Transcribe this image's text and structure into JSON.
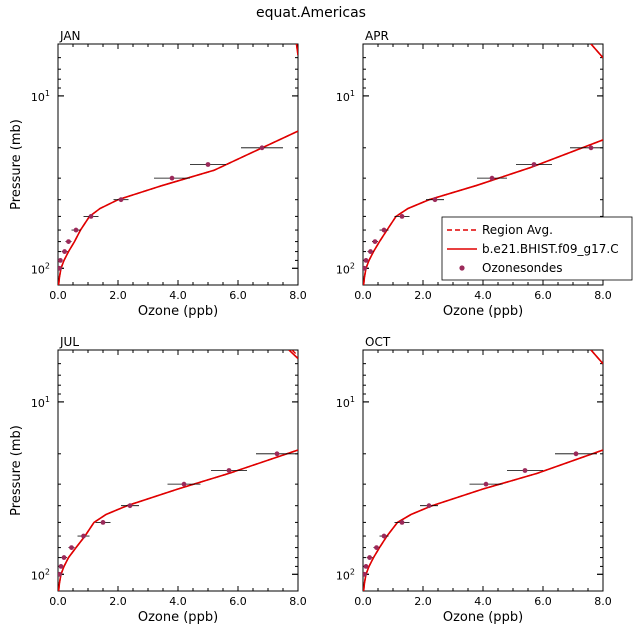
{
  "figure_title": "equat.Americas",
  "legend": {
    "items": [
      {
        "label": "Region Avg.",
        "style": "dashed",
        "color": "#e00000"
      },
      {
        "label": "b.e21.BHIST.f09_g17.C",
        "style": "solid",
        "color": "#e00000"
      },
      {
        "label": "Ozonesondes",
        "style": "marker",
        "color": "#9b2a5a"
      }
    ],
    "placement": "right, within APR panel"
  },
  "chart_data": [
    {
      "type": "line",
      "panel": "JAN",
      "xlabel": "Ozone (ppb)",
      "ylabel": "Pressure (mb)",
      "xlim": [
        0,
        8
      ],
      "ylim_log": [
        125,
        5
      ],
      "y_scale": "log-reversed",
      "x_ticks": [
        "0.0",
        "2.0",
        "4.0",
        "6.0",
        "8.0"
      ],
      "y_ticks": [
        {
          "label": "10",
          "sup": "1"
        },
        {
          "label": "10",
          "sup": "2"
        }
      ],
      "series": [
        {
          "name": "Region Avg.",
          "style": "dashed",
          "x": [
            0.02,
            0.05,
            0.1,
            0.2,
            0.35,
            0.55,
            0.75,
            1.05,
            1.4,
            2.0,
            3.5,
            5.2,
            8.0
          ],
          "y": [
            125,
            112,
            100,
            90,
            80,
            70,
            60,
            50,
            45,
            40,
            33,
            27,
            16
          ]
        },
        {
          "name": "b.e21.BHIST.f09_g17.C",
          "style": "solid",
          "x": [
            0.02,
            0.05,
            0.1,
            0.2,
            0.35,
            0.55,
            0.75,
            1.05,
            1.4,
            2.0,
            3.5,
            5.2,
            8.0
          ],
          "y": [
            125,
            112,
            100,
            90,
            80,
            70,
            60,
            50,
            45,
            40,
            33,
            27,
            16
          ]
        },
        {
          "name": "Region Avg. upper",
          "style": "dashed",
          "x": [
            7.95,
            8.0
          ],
          "y": [
            5,
            5.8
          ]
        },
        {
          "name": "b.e21.BHIST.f09_g17.C upper",
          "style": "solid",
          "x": [
            7.95,
            8.0
          ],
          "y": [
            5,
            5.8
          ]
        }
      ],
      "ozonesondes": [
        {
          "x": 0.05,
          "y": 100,
          "err": 0.05
        },
        {
          "x": 0.08,
          "y": 90,
          "err": 0.06
        },
        {
          "x": 0.22,
          "y": 80,
          "err": 0.1
        },
        {
          "x": 0.35,
          "y": 70,
          "err": 0.1
        },
        {
          "x": 0.6,
          "y": 60,
          "err": 0.15
        },
        {
          "x": 1.1,
          "y": 50,
          "err": 0.25
        },
        {
          "x": 2.1,
          "y": 40,
          "err": 0.25
        },
        {
          "x": 3.8,
          "y": 30,
          "err": 0.6
        },
        {
          "x": 5.0,
          "y": 25,
          "err": 0.6
        },
        {
          "x": 6.8,
          "y": 20,
          "err": 0.7
        }
      ]
    },
    {
      "type": "line",
      "panel": "APR",
      "xlabel": "Ozone (ppb)",
      "ylabel": "",
      "xlim": [
        0,
        8
      ],
      "ylim_log": [
        125,
        5
      ],
      "y_scale": "log-reversed",
      "x_ticks": [
        "0.0",
        "2.0",
        "4.0",
        "6.0",
        "8.0"
      ],
      "y_ticks": [
        {
          "label": "10",
          "sup": "1"
        },
        {
          "label": "10",
          "sup": "2"
        }
      ],
      "series": [
        {
          "name": "Region Avg.",
          "style": "dashed",
          "x": [
            0.02,
            0.05,
            0.1,
            0.2,
            0.35,
            0.55,
            0.8,
            1.1,
            1.5,
            2.2,
            3.8,
            5.6,
            8.0
          ],
          "y": [
            125,
            112,
            100,
            90,
            80,
            70,
            60,
            50,
            45,
            40,
            33,
            26,
            18
          ]
        },
        {
          "name": "b.e21.BHIST.f09_g17.C",
          "style": "solid",
          "x": [
            0.02,
            0.05,
            0.1,
            0.2,
            0.35,
            0.55,
            0.8,
            1.1,
            1.5,
            2.2,
            3.8,
            5.6,
            8.0
          ],
          "y": [
            125,
            112,
            100,
            90,
            80,
            70,
            60,
            50,
            45,
            40,
            33,
            26,
            18
          ]
        },
        {
          "name": "Region Avg. upper",
          "style": "dashed",
          "x": [
            7.6,
            8.0
          ],
          "y": [
            5,
            6.0
          ]
        },
        {
          "name": "b.e21.BHIST.f09_g17.C upper",
          "style": "solid",
          "x": [
            7.6,
            8.0
          ],
          "y": [
            5,
            6.0
          ]
        }
      ],
      "ozonesondes": [
        {
          "x": 0.05,
          "y": 100,
          "err": 0.05
        },
        {
          "x": 0.1,
          "y": 90,
          "err": 0.06
        },
        {
          "x": 0.25,
          "y": 80,
          "err": 0.1
        },
        {
          "x": 0.4,
          "y": 70,
          "err": 0.1
        },
        {
          "x": 0.7,
          "y": 60,
          "err": 0.15
        },
        {
          "x": 1.3,
          "y": 50,
          "err": 0.25
        },
        {
          "x": 2.4,
          "y": 40,
          "err": 0.3
        },
        {
          "x": 4.3,
          "y": 30,
          "err": 0.5
        },
        {
          "x": 5.7,
          "y": 25,
          "err": 0.6
        },
        {
          "x": 7.6,
          "y": 20,
          "err": 0.7
        }
      ]
    },
    {
      "type": "line",
      "panel": "JUL",
      "xlabel": "Ozone (ppb)",
      "ylabel": "Pressure (mb)",
      "xlim": [
        0,
        8
      ],
      "ylim_log": [
        125,
        5
      ],
      "y_scale": "log-reversed",
      "x_ticks": [
        "0.0",
        "2.0",
        "4.0",
        "6.0",
        "8.0"
      ],
      "y_ticks": [
        {
          "label": "10",
          "sup": "1"
        },
        {
          "label": "10",
          "sup": "2"
        }
      ],
      "series": [
        {
          "name": "Region Avg.",
          "style": "dashed",
          "x": [
            0.02,
            0.05,
            0.1,
            0.2,
            0.35,
            0.6,
            0.9,
            1.2,
            1.6,
            2.3,
            4.0,
            5.7,
            8.0
          ],
          "y": [
            125,
            112,
            100,
            90,
            80,
            70,
            60,
            50,
            45,
            40,
            32,
            26,
            19
          ]
        },
        {
          "name": "b.e21.BHIST.f09_g17.C",
          "style": "solid",
          "x": [
            0.02,
            0.05,
            0.1,
            0.2,
            0.35,
            0.6,
            0.9,
            1.2,
            1.6,
            2.3,
            4.0,
            5.7,
            8.0
          ],
          "y": [
            125,
            112,
            100,
            90,
            80,
            70,
            60,
            50,
            45,
            40,
            32,
            26,
            19
          ]
        },
        {
          "name": "Region Avg. upper",
          "style": "dashed",
          "x": [
            7.8,
            8.0
          ],
          "y": [
            5,
            5.4
          ]
        },
        {
          "name": "b.e21.BHIST.f09_g17.C upper",
          "style": "solid",
          "x": [
            7.7,
            8.0
          ],
          "y": [
            5,
            5.6
          ]
        }
      ],
      "ozonesondes": [
        {
          "x": 0.05,
          "y": 100,
          "err": 0.05
        },
        {
          "x": 0.1,
          "y": 90,
          "err": 0.06
        },
        {
          "x": 0.2,
          "y": 80,
          "err": 0.1
        },
        {
          "x": 0.45,
          "y": 70,
          "err": 0.1
        },
        {
          "x": 0.85,
          "y": 60,
          "err": 0.2
        },
        {
          "x": 1.5,
          "y": 50,
          "err": 0.25
        },
        {
          "x": 2.4,
          "y": 40,
          "err": 0.3
        },
        {
          "x": 4.2,
          "y": 30,
          "err": 0.55
        },
        {
          "x": 5.7,
          "y": 25,
          "err": 0.6
        },
        {
          "x": 7.3,
          "y": 20,
          "err": 0.7
        }
      ]
    },
    {
      "type": "line",
      "panel": "OCT",
      "xlabel": "Ozone (ppb)",
      "ylabel": "",
      "xlim": [
        0,
        8
      ],
      "ylim_log": [
        125,
        5
      ],
      "y_scale": "log-reversed",
      "x_ticks": [
        "0.0",
        "2.0",
        "4.0",
        "6.0",
        "8.0"
      ],
      "y_ticks": [
        {
          "label": "10",
          "sup": "1"
        },
        {
          "label": "10",
          "sup": "2"
        }
      ],
      "series": [
        {
          "name": "Region Avg.",
          "style": "dashed",
          "x": [
            0.02,
            0.05,
            0.1,
            0.2,
            0.35,
            0.55,
            0.8,
            1.15,
            1.6,
            2.3,
            4.0,
            5.8,
            8.0
          ],
          "y": [
            125,
            112,
            100,
            90,
            80,
            70,
            60,
            50,
            45,
            40,
            32,
            26,
            19
          ]
        },
        {
          "name": "b.e21.BHIST.f09_g17.C",
          "style": "solid",
          "x": [
            0.02,
            0.05,
            0.1,
            0.2,
            0.35,
            0.55,
            0.8,
            1.15,
            1.6,
            2.3,
            4.0,
            5.8,
            8.0
          ],
          "y": [
            125,
            112,
            100,
            90,
            80,
            70,
            60,
            50,
            45,
            40,
            32,
            26,
            19
          ]
        },
        {
          "name": "Region Avg. upper",
          "style": "dashed",
          "x": [
            7.6,
            8.0
          ],
          "y": [
            5,
            6.0
          ]
        },
        {
          "name": "b.e21.BHIST.f09_g17.C upper",
          "style": "solid",
          "x": [
            7.6,
            8.0
          ],
          "y": [
            5,
            6.0
          ]
        }
      ],
      "ozonesondes": [
        {
          "x": 0.05,
          "y": 100,
          "err": 0.05
        },
        {
          "x": 0.1,
          "y": 90,
          "err": 0.06
        },
        {
          "x": 0.22,
          "y": 80,
          "err": 0.1
        },
        {
          "x": 0.45,
          "y": 70,
          "err": 0.1
        },
        {
          "x": 0.7,
          "y": 60,
          "err": 0.15
        },
        {
          "x": 1.3,
          "y": 50,
          "err": 0.25
        },
        {
          "x": 2.2,
          "y": 40,
          "err": 0.3
        },
        {
          "x": 4.1,
          "y": 30,
          "err": 0.55
        },
        {
          "x": 5.4,
          "y": 25,
          "err": 0.6
        },
        {
          "x": 7.1,
          "y": 20,
          "err": 0.7
        }
      ]
    }
  ]
}
